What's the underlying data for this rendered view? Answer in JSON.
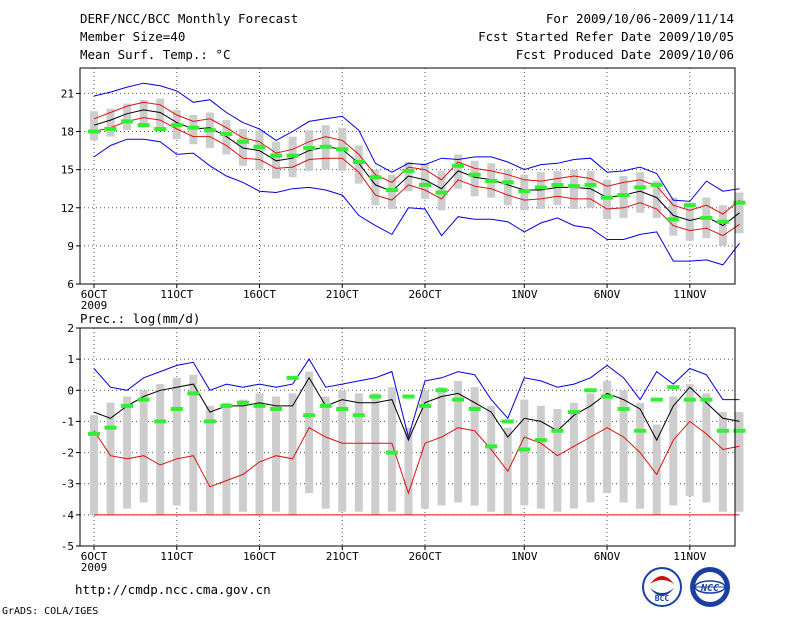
{
  "header": {
    "title": "DERF/NCC/BCC Monthly Forecast",
    "member_size": "Member Size=40",
    "variable": "Mean Surf. Temp.: °C",
    "period": "For 2009/10/06-2009/11/14",
    "fcst_started": "Fcst Started Refer Date 2009/10/05",
    "fcst_produced": "Fcst Produced Date 2009/10/06"
  },
  "footer": {
    "url": "http://cmdp.ncc.cma.gov.cn",
    "credit": "GrADS: COLA/IGES",
    "logo_bcc": "BCC",
    "logo_ncc": "NCC"
  },
  "colors": {
    "box": "#cdcdcd",
    "mean": "#000000",
    "spread_red": "#dd1111",
    "extreme_blue": "#0000dd",
    "median_green": "#33ee33",
    "grid": "#555555"
  },
  "chart_data": [
    {
      "type": "box_ensemble",
      "title": "Mean Surf. Temp.: °C",
      "xlabel": "",
      "ylabel": "°C",
      "ylim": [
        6,
        23
      ],
      "yticks": [
        6,
        9,
        12,
        15,
        18,
        21
      ],
      "xticks": [
        {
          "day": 0,
          "label": "6OCT"
        },
        {
          "day": 5,
          "label": "11OCT"
        },
        {
          "day": 10,
          "label": "16OCT"
        },
        {
          "day": 15,
          "label": "21OCT"
        },
        {
          "day": 20,
          "label": "26OCT"
        },
        {
          "day": 26,
          "label": "1NOV"
        },
        {
          "day": 31,
          "label": "6NOV"
        },
        {
          "day": 36,
          "label": "11NOV"
        }
      ],
      "year_label": "2009",
      "days": 40,
      "series": [
        {
          "name": "max",
          "color": "#0000dd",
          "values": [
            20.8,
            21.1,
            21.5,
            21.8,
            21.6,
            21.2,
            20.3,
            20.5,
            19.5,
            18.7,
            18.2,
            17.3,
            18.0,
            18.8,
            19.0,
            19.2,
            18.1,
            15.5,
            14.8,
            15.5,
            15.4,
            15.9,
            15.8,
            16.0,
            16.0,
            15.6,
            15.0,
            15.4,
            15.5,
            15.8,
            15.9,
            14.8,
            14.9,
            15.2,
            14.7,
            12.6,
            12.5,
            14.1,
            13.3,
            13.5
          ]
        },
        {
          "name": "mean_plus_sd",
          "color": "#dd1111",
          "values": [
            19.0,
            19.5,
            20.0,
            20.3,
            20.1,
            19.3,
            18.8,
            19.0,
            18.3,
            17.5,
            17.2,
            16.3,
            16.6,
            17.2,
            17.6,
            17.3,
            16.2,
            14.6,
            14.0,
            15.2,
            15.0,
            14.2,
            15.6,
            15.1,
            14.9,
            14.6,
            14.2,
            14.1,
            14.3,
            14.5,
            14.3,
            13.7,
            14.0,
            14.2,
            13.7,
            12.2,
            11.8,
            12.2,
            11.5,
            12.6
          ]
        },
        {
          "name": "mean",
          "color": "#000000",
          "values": [
            18.5,
            18.9,
            19.4,
            19.7,
            19.5,
            18.7,
            18.2,
            18.3,
            17.6,
            16.7,
            16.5,
            15.7,
            15.9,
            16.5,
            16.8,
            16.6,
            15.5,
            13.8,
            13.3,
            14.5,
            14.2,
            13.5,
            14.9,
            14.4,
            14.2,
            13.8,
            13.4,
            13.4,
            13.6,
            13.6,
            13.5,
            12.8,
            13.0,
            13.3,
            12.8,
            11.4,
            11.0,
            11.3,
            10.6,
            11.6
          ]
        },
        {
          "name": "mean_minus_sd",
          "color": "#dd1111",
          "values": [
            18.0,
            18.3,
            18.8,
            19.1,
            18.9,
            18.2,
            17.6,
            17.6,
            16.9,
            15.9,
            15.8,
            15.1,
            15.2,
            15.8,
            15.9,
            15.9,
            14.8,
            13.0,
            12.6,
            13.8,
            13.4,
            12.7,
            14.2,
            13.7,
            13.5,
            13.0,
            12.6,
            12.7,
            12.9,
            12.7,
            12.7,
            11.9,
            12.0,
            12.4,
            11.9,
            10.6,
            10.2,
            10.4,
            9.8,
            10.7
          ]
        },
        {
          "name": "min",
          "color": "#0000dd",
          "values": [
            16.0,
            16.9,
            17.4,
            17.4,
            17.2,
            16.2,
            16.3,
            15.3,
            14.5,
            14.0,
            13.3,
            13.2,
            13.5,
            13.6,
            13.4,
            13.0,
            11.4,
            10.6,
            9.9,
            12.0,
            11.9,
            9.8,
            11.3,
            11.1,
            11.1,
            10.9,
            10.1,
            10.8,
            11.2,
            10.6,
            10.4,
            9.5,
            9.5,
            9.9,
            10.1,
            7.8,
            7.8,
            7.9,
            7.5,
            9.2
          ]
        },
        {
          "name": "median",
          "color": "#33ee33",
          "values": [
            18.0,
            18.2,
            18.8,
            18.5,
            18.2,
            18.5,
            18.3,
            18.1,
            17.8,
            17.2,
            16.8,
            16.1,
            16.1,
            16.7,
            16.8,
            16.6,
            15.6,
            14.4,
            13.4,
            14.9,
            13.8,
            13.2,
            15.3,
            14.6,
            14.1,
            14.0,
            13.3,
            13.6,
            13.8,
            13.7,
            13.8,
            12.8,
            13.0,
            13.6,
            13.8,
            11.1,
            12.2,
            11.2,
            10.9,
            12.4
          ]
        },
        {
          "name": "box_high",
          "color": "#cdcdcd",
          "values": [
            19.6,
            19.8,
            20.2,
            20.5,
            20.6,
            19.7,
            19.3,
            19.5,
            18.9,
            18.2,
            18.1,
            17.2,
            17.6,
            18.1,
            18.5,
            18.3,
            16.9,
            15.0,
            14.6,
            15.6,
            15.5,
            14.9,
            16.2,
            15.7,
            15.5,
            15.0,
            14.6,
            14.8,
            14.9,
            15.0,
            14.9,
            14.2,
            14.5,
            14.8,
            14.1,
            12.8,
            12.4,
            12.8,
            12.2,
            13.2
          ]
        },
        {
          "name": "box_low",
          "color": "#cdcdcd",
          "values": [
            17.3,
            17.6,
            18.1,
            18.4,
            18.2,
            17.4,
            17.0,
            16.7,
            16.2,
            15.3,
            15.0,
            14.3,
            14.4,
            14.9,
            15.0,
            14.9,
            13.9,
            12.2,
            11.9,
            13.3,
            12.7,
            11.8,
            13.5,
            12.9,
            12.8,
            12.2,
            11.8,
            11.9,
            12.2,
            11.9,
            12.0,
            11.1,
            11.2,
            11.6,
            11.2,
            9.8,
            9.4,
            9.6,
            9.0,
            10.0
          ]
        }
      ]
    },
    {
      "type": "box_ensemble",
      "title": "Prec.: log(mm/d)",
      "xlabel": "",
      "ylabel": "log(mm/d)",
      "ylim": [
        -5,
        2
      ],
      "yticks": [
        -5,
        -4,
        -3,
        -2,
        -1,
        0,
        1,
        2
      ],
      "xticks": [
        {
          "day": 0,
          "label": "6OCT"
        },
        {
          "day": 5,
          "label": "11OCT"
        },
        {
          "day": 10,
          "label": "16OCT"
        },
        {
          "day": 15,
          "label": "21OCT"
        },
        {
          "day": 20,
          "label": "26OCT"
        },
        {
          "day": 26,
          "label": "1NOV"
        },
        {
          "day": 31,
          "label": "6NOV"
        },
        {
          "day": 36,
          "label": "11NOV"
        }
      ],
      "year_label": "2009",
      "days": 40,
      "baseline": -4,
      "series": [
        {
          "name": "max",
          "color": "#0000dd",
          "values": [
            0.7,
            0.1,
            0.0,
            0.4,
            0.6,
            0.8,
            0.9,
            0.0,
            0.2,
            0.1,
            0.2,
            0.1,
            0.2,
            1.0,
            0.1,
            0.2,
            0.3,
            0.4,
            0.6,
            -1.5,
            0.3,
            0.4,
            0.6,
            0.5,
            -0.3,
            -0.9,
            0.4,
            0.3,
            0.1,
            0.2,
            0.4,
            0.8,
            0.4,
            -0.3,
            0.6,
            0.2,
            0.7,
            0.5,
            -0.3,
            -0.3
          ]
        },
        {
          "name": "mean",
          "color": "#000000",
          "values": [
            -0.7,
            -0.9,
            -0.5,
            -0.2,
            0.0,
            0.1,
            0.2,
            -0.7,
            -0.5,
            -0.5,
            -0.4,
            -0.5,
            -0.5,
            0.4,
            -0.5,
            -0.3,
            -0.4,
            -0.4,
            -0.3,
            -1.6,
            -0.4,
            -0.2,
            -0.1,
            -0.4,
            -0.7,
            -1.5,
            -0.9,
            -1.0,
            -1.3,
            -0.8,
            -0.5,
            -0.1,
            -0.3,
            -0.6,
            -1.6,
            -0.5,
            0.1,
            -0.4,
            -0.9,
            -1.0
          ]
        },
        {
          "name": "mean_minus_sd",
          "color": "#dd1111",
          "values": [
            -1.3,
            -2.1,
            -2.2,
            -2.1,
            -2.4,
            -2.2,
            -2.1,
            -3.1,
            -2.9,
            -2.7,
            -2.3,
            -2.1,
            -2.2,
            -1.2,
            -1.5,
            -1.7,
            -1.7,
            -1.7,
            -1.7,
            -3.3,
            -1.7,
            -1.5,
            -1.2,
            -1.3,
            -1.9,
            -2.6,
            -1.5,
            -1.7,
            -2.1,
            -1.8,
            -1.5,
            -1.2,
            -1.5,
            -2.0,
            -2.7,
            -1.6,
            -1.0,
            -1.4,
            -1.9,
            -1.8
          ]
        },
        {
          "name": "median",
          "color": "#33ee33",
          "values": [
            -1.4,
            -1.2,
            -0.5,
            -0.3,
            -1.0,
            -0.6,
            -0.1,
            -1.0,
            -0.5,
            -0.4,
            -0.5,
            -0.6,
            0.4,
            -0.8,
            -0.5,
            -0.6,
            -0.8,
            -0.2,
            -2.0,
            -0.2,
            -0.5,
            0.0,
            -0.3,
            -0.6,
            -1.8,
            -1.0,
            -1.9,
            -1.6,
            -1.3,
            -0.7,
            0.0,
            -0.2,
            -0.6,
            -1.3,
            -0.3,
            0.1,
            -0.3,
            -0.3,
            -1.3,
            -1.3
          ]
        },
        {
          "name": "box_high",
          "color": "#cdcdcd",
          "values": [
            -0.8,
            -0.4,
            -0.2,
            0.0,
            0.2,
            0.4,
            0.5,
            -0.5,
            -0.4,
            -0.3,
            -0.1,
            -0.2,
            -0.1,
            0.6,
            -0.2,
            0.0,
            -0.1,
            -0.1,
            0.1,
            -1.2,
            0.0,
            0.1,
            0.3,
            0.1,
            -0.5,
            -1.2,
            -0.3,
            -0.5,
            -0.6,
            -0.4,
            -0.1,
            0.3,
            0.0,
            -0.4,
            -1.1,
            -0.2,
            0.2,
            -0.1,
            -0.7,
            -0.7
          ]
        },
        {
          "name": "box_low",
          "color": "#cdcdcd",
          "values": [
            -4.0,
            -4.0,
            -3.8,
            -3.6,
            -4.0,
            -3.7,
            -3.9,
            -4.0,
            -4.0,
            -3.9,
            -4.0,
            -3.9,
            -4.0,
            -3.3,
            -3.8,
            -3.9,
            -3.9,
            -4.0,
            -3.9,
            -4.0,
            -3.8,
            -3.7,
            -3.6,
            -3.7,
            -3.9,
            -4.0,
            -3.7,
            -3.8,
            -3.9,
            -3.8,
            -3.6,
            -3.3,
            -3.6,
            -3.8,
            -4.0,
            -3.7,
            -3.4,
            -3.6,
            -3.9,
            -3.9
          ]
        }
      ]
    }
  ]
}
